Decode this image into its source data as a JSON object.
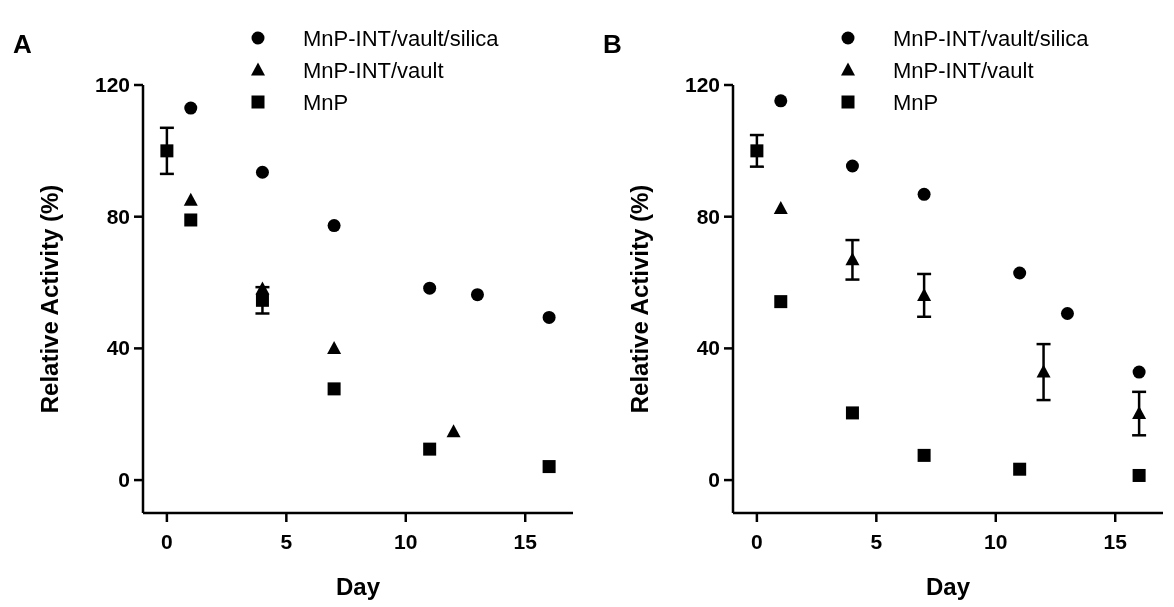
{
  "chart_data": [
    {
      "type": "scatter",
      "title": "A",
      "xlabel": "Day",
      "ylabel": "Relative Activity (%)",
      "xlim": [
        -1,
        17
      ],
      "xticks": [
        0,
        5,
        10,
        15
      ],
      "ylim": [
        -10,
        120
      ],
      "yticks": [
        0,
        40,
        80,
        120
      ],
      "legend": "top",
      "grid": false,
      "series": [
        {
          "name": "MnP-INT/vault/silica",
          "color": "#000000",
          "marker": "circle",
          "x": [
            1,
            4,
            7,
            11,
            13,
            16
          ],
          "values": [
            113,
            93.5,
            77.3,
            58.3,
            56.3,
            49.4
          ]
        },
        {
          "name": "MnP-INT/vault",
          "color": "#000000",
          "marker": "triangle",
          "x": [
            1,
            4,
            7,
            12
          ],
          "values": [
            85,
            58,
            40,
            14.7
          ]
        },
        {
          "name": "MnP",
          "color": "#000000",
          "marker": "square",
          "x": [
            0,
            1,
            4,
            7,
            11,
            16
          ],
          "values": [
            100,
            79,
            54.6,
            27.7,
            9.4,
            4.1
          ],
          "errors": [
            7,
            null,
            4,
            null,
            null,
            null
          ]
        }
      ]
    },
    {
      "type": "scatter",
      "title": "B",
      "xlabel": "Day",
      "ylabel": "Relative Activity (%)",
      "xlim": [
        -1,
        17
      ],
      "xticks": [
        0,
        5,
        10,
        15
      ],
      "ylim": [
        -10,
        120
      ],
      "yticks": [
        0,
        40,
        80,
        120
      ],
      "legend": "top",
      "grid": false,
      "series": [
        {
          "name": "MnP-INT/vault/silica",
          "color": "#000000",
          "marker": "circle",
          "x": [
            1,
            4,
            7,
            11,
            13,
            16
          ],
          "values": [
            115.2,
            95.4,
            86.8,
            62.9,
            50.6,
            32.8
          ]
        },
        {
          "name": "MnP-INT/vault",
          "color": "#000000",
          "marker": "triangle",
          "x": [
            1,
            4,
            7,
            12,
            16
          ],
          "values": [
            82.5,
            66.9,
            56.1,
            32.8,
            20.2
          ],
          "errors": [
            null,
            6,
            6.5,
            8.5,
            6.6
          ]
        },
        {
          "name": "MnP",
          "color": "#000000",
          "marker": "square",
          "x": [
            0,
            1,
            4,
            7,
            11,
            16
          ],
          "values": [
            100,
            54.2,
            20.4,
            7.5,
            3.3,
            1.4
          ],
          "errors": [
            4.8,
            null,
            null,
            null,
            null,
            null
          ]
        }
      ]
    }
  ]
}
